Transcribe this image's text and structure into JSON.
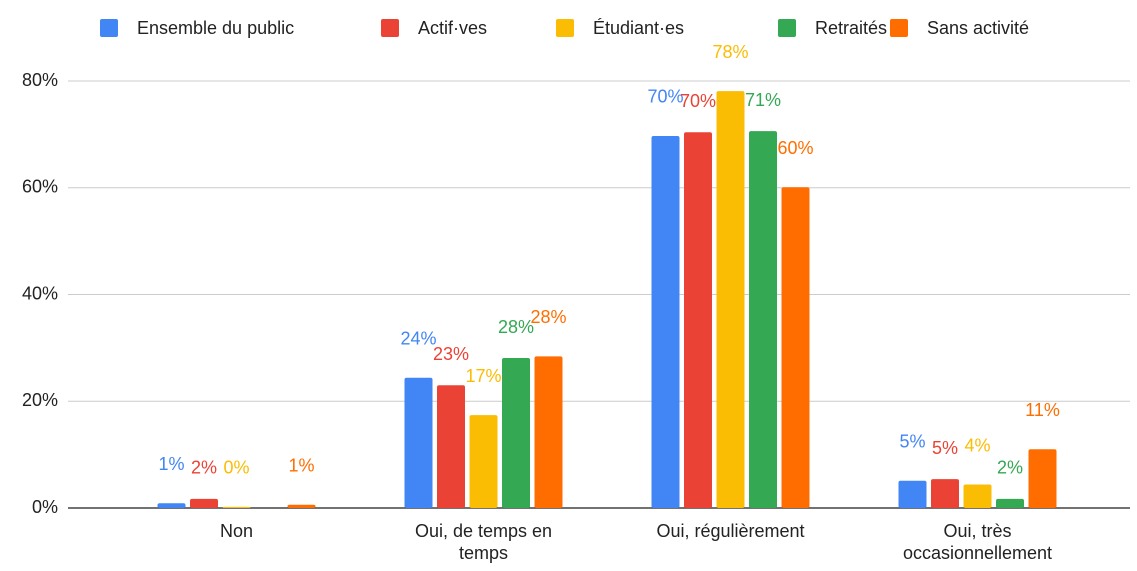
{
  "chart_data": {
    "type": "bar",
    "categories": [
      "Non",
      "Oui, de temps en temps",
      "Oui, régulièrement",
      "Oui, très occasionnellement"
    ],
    "series": [
      {
        "name": "Ensemble du public",
        "color": "#4285f4",
        "values": [
          0.9,
          24.4,
          69.7,
          5.1
        ],
        "value_labels": [
          "1%",
          "24%",
          "70%",
          "5%"
        ]
      },
      {
        "name": "Actif·ves",
        "color": "#ea4335",
        "values": [
          1.7,
          23,
          70.4,
          5.4
        ],
        "value_labels": [
          "2%",
          "23%",
          "70%",
          "5%"
        ]
      },
      {
        "name": "Étudiant·es",
        "color": "#fbbc04",
        "values": [
          0.2,
          17.4,
          78.1,
          4.4
        ],
        "value_labels": [
          "0%",
          "17%",
          "78%",
          "4%"
        ]
      },
      {
        "name": "Retraités",
        "color": "#34a853",
        "values": [
          null,
          28.1,
          70.6,
          1.7
        ],
        "value_labels": [
          null,
          "28%",
          "71%",
          "2%"
        ]
      },
      {
        "name": "Sans activité",
        "color": "#ff6d01",
        "values": [
          0.6,
          28.4,
          60.1,
          11
        ],
        "value_labels": [
          "1%",
          "28%",
          "60%",
          "11%"
        ]
      }
    ],
    "ylim": [
      0,
      80
    ],
    "yticks": [
      {
        "value": 0,
        "label": "0%"
      },
      {
        "value": 20,
        "label": "20%"
      },
      {
        "value": 40,
        "label": "40%"
      },
      {
        "value": 60,
        "label": "60%"
      },
      {
        "value": 80,
        "label": "80%"
      }
    ],
    "grid": true,
    "legend": "top"
  }
}
